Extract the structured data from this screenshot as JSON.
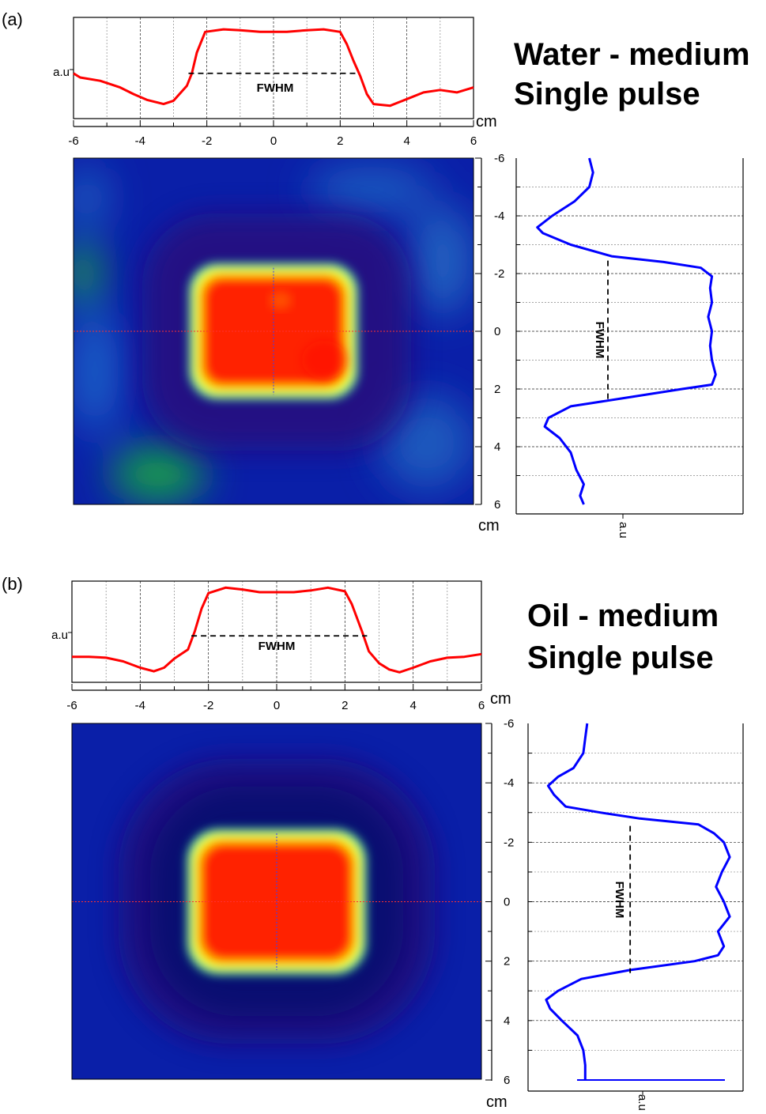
{
  "chart_data": [
    {
      "type": "heatmap",
      "panel_label": "(a)",
      "title": [
        "Water - medium",
        "Single pulse"
      ],
      "unit": "cm",
      "amplitude_label": "a.u",
      "fwhm_label": "FWHM",
      "x_range": [
        -6,
        6
      ],
      "y_range": [
        -6,
        6
      ],
      "x_ticks": [
        -6,
        -4,
        -2,
        0,
        2,
        4,
        6
      ],
      "y_ticks": [
        -6,
        -4,
        -2,
        0,
        2,
        4,
        6
      ],
      "grid": true,
      "colors": {
        "horizontal_profile": "#ff0000",
        "vertical_profile": "#0000ff",
        "hot": "#ff2000",
        "background": "#0a1fa8"
      },
      "heatmap": {
        "core": {
          "x_min": -2.4,
          "x_max": 2.4,
          "y_min": -2.2,
          "y_max": 2.2
        },
        "peak": 1.0
      },
      "horizontal_profile": {
        "x": [
          -6,
          -5.8,
          -5.2,
          -4.6,
          -4.2,
          -3.8,
          -3.3,
          -3.0,
          -2.6,
          -2.45,
          -2.3,
          -2.05,
          -1.5,
          -1.0,
          -0.4,
          0.4,
          1.0,
          1.5,
          2.0,
          2.2,
          2.4,
          2.6,
          2.8,
          3.0,
          3.5,
          4.0,
          4.5,
          5.0,
          5.5,
          6.0
        ],
        "y": [
          0.45,
          0.4,
          0.36,
          0.28,
          0.2,
          0.13,
          0.08,
          0.12,
          0.3,
          0.45,
          0.7,
          0.95,
          0.98,
          0.97,
          0.95,
          0.95,
          0.97,
          0.98,
          0.95,
          0.8,
          0.6,
          0.42,
          0.2,
          0.08,
          0.06,
          0.14,
          0.22,
          0.25,
          0.22,
          0.28
        ],
        "fwhm_level": 0.45,
        "fwhm_x": [
          -2.55,
          2.55
        ]
      },
      "vertical_profile": {
        "y": [
          -6,
          -5.5,
          -5.0,
          -4.5,
          -4.0,
          -3.6,
          -3.4,
          -3.0,
          -2.6,
          -2.4,
          -2.2,
          -1.9,
          -1.5,
          -1.0,
          -0.5,
          0,
          0.5,
          1.0,
          1.5,
          1.85,
          2.0,
          2.3,
          2.6,
          3.0,
          3.3,
          3.7,
          4.2,
          4.8,
          5.3,
          5.7,
          6.0
        ],
        "v": [
          0.3,
          0.32,
          0.3,
          0.22,
          0.1,
          0.02,
          0.05,
          0.2,
          0.42,
          0.7,
          0.9,
          0.96,
          0.95,
          0.96,
          0.94,
          0.96,
          0.95,
          0.96,
          0.98,
          0.96,
          0.8,
          0.5,
          0.2,
          0.08,
          0.06,
          0.14,
          0.2,
          0.23,
          0.27,
          0.25,
          0.27
        ],
        "fwhm_level": 0.4,
        "fwhm_y": [
          -2.45,
          2.45
        ]
      }
    },
    {
      "type": "heatmap",
      "panel_label": "(b)",
      "title": [
        "Oil - medium",
        "Single pulse"
      ],
      "unit": "cm",
      "amplitude_label": "a.u",
      "fwhm_label": "FWHM",
      "x_range": [
        -6,
        6
      ],
      "y_range": [
        -6,
        6
      ],
      "x_ticks": [
        -6,
        -4,
        -2,
        0,
        2,
        4,
        6
      ],
      "y_ticks": [
        -6,
        -4,
        -2,
        0,
        2,
        4,
        6
      ],
      "grid": true,
      "colors": {
        "horizontal_profile": "#ff0000",
        "vertical_profile": "#0000ff",
        "hot": "#ff2000",
        "background": "#0a1fa8"
      },
      "heatmap": {
        "core": {
          "x_min": -2.5,
          "x_max": 2.5,
          "y_min": -2.3,
          "y_max": 2.3
        },
        "peak": 1.0
      },
      "horizontal_profile": {
        "x": [
          -6,
          -5.5,
          -5.0,
          -4.5,
          -4.0,
          -3.6,
          -3.3,
          -3.0,
          -2.6,
          -2.4,
          -2.2,
          -2.0,
          -1.5,
          -1.0,
          -0.5,
          0,
          0.5,
          1.0,
          1.5,
          2.0,
          2.2,
          2.5,
          2.7,
          3.0,
          3.3,
          3.6,
          4.0,
          4.5,
          5.0,
          5.5,
          6.0
        ],
        "y": [
          0.22,
          0.22,
          0.21,
          0.17,
          0.1,
          0.06,
          0.1,
          0.2,
          0.3,
          0.5,
          0.75,
          0.92,
          0.98,
          0.96,
          0.93,
          0.93,
          0.93,
          0.95,
          0.98,
          0.94,
          0.8,
          0.5,
          0.28,
          0.15,
          0.08,
          0.05,
          0.1,
          0.17,
          0.21,
          0.22,
          0.25
        ],
        "fwhm_level": 0.45,
        "fwhm_x": [
          -2.5,
          2.65
        ]
      },
      "vertical_profile": {
        "y": [
          -6,
          -5.5,
          -5.0,
          -4.5,
          -4.2,
          -3.9,
          -3.6,
          -3.2,
          -3.0,
          -2.8,
          -2.6,
          -2.3,
          -2.0,
          -1.5,
          -1.0,
          -0.5,
          0,
          0.5,
          1.0,
          1.5,
          1.8,
          2.0,
          2.3,
          2.6,
          3.0,
          3.3,
          3.6,
          4.0,
          4.5,
          5.0,
          5.5,
          6.0
        ],
        "v": [
          0.23,
          0.22,
          0.21,
          0.16,
          0.08,
          0.03,
          0.06,
          0.12,
          0.3,
          0.5,
          0.8,
          0.88,
          0.93,
          0.96,
          0.92,
          0.89,
          0.93,
          0.96,
          0.9,
          0.93,
          0.9,
          0.78,
          0.45,
          0.2,
          0.08,
          0.02,
          0.04,
          0.1,
          0.18,
          0.21,
          0.22,
          0.22
        ],
        "fwhm_level": 0.45,
        "fwhm_y": [
          -2.55,
          2.4
        ]
      }
    }
  ]
}
